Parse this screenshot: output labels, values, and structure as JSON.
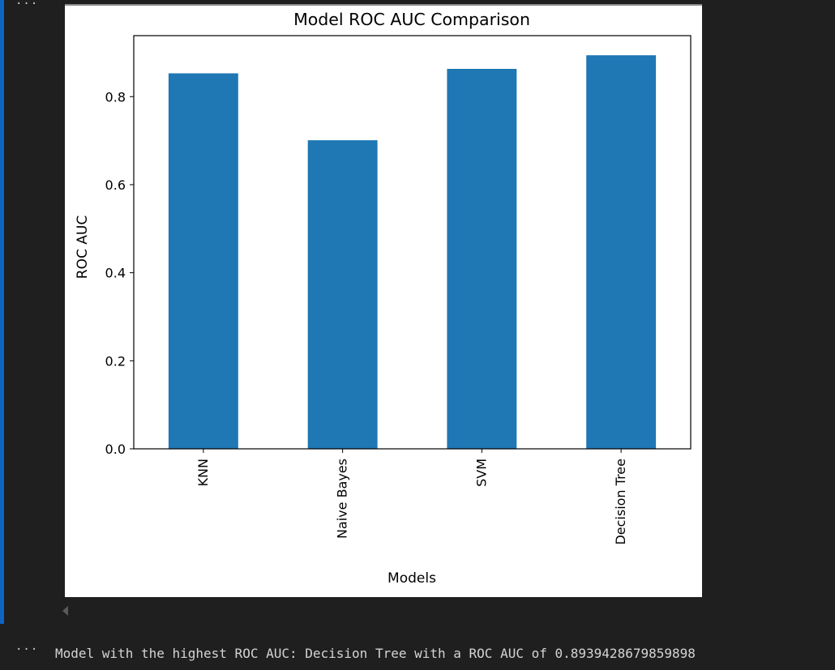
{
  "cell": {
    "collapse_top": "···",
    "collapse_bottom": "···",
    "output_text": "Model with the highest ROC AUC: Decision Tree with a ROC AUC of 0.8939428679859898"
  },
  "colors": {
    "bar": "#1f77b4",
    "cell_accent": "#0e64c1",
    "background": "#1f1f1f"
  },
  "chart_data": {
    "type": "bar",
    "title": "Model ROC AUC Comparison",
    "xlabel": "Models",
    "ylabel": "ROC AUC",
    "categories": [
      "KNN",
      "Naive Bayes",
      "SVM",
      "Decision Tree"
    ],
    "values": [
      0.853,
      0.701,
      0.863,
      0.894
    ],
    "ylim": [
      0,
      0.9385
    ],
    "yticks": [
      0.0,
      0.2,
      0.4,
      0.6,
      0.8
    ],
    "ytick_labels": [
      "0.0",
      "0.2",
      "0.4",
      "0.6",
      "0.8"
    ],
    "x_tick_rotation": "vertical",
    "grid": false,
    "legend": "none"
  }
}
